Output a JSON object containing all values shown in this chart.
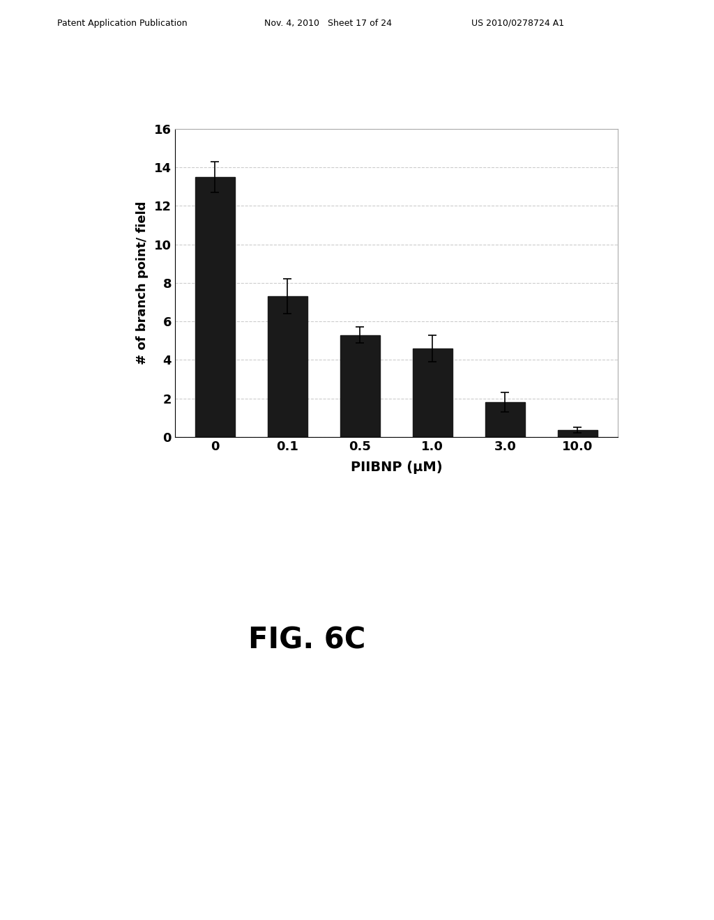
{
  "categories": [
    "0",
    "0.1",
    "0.5",
    "1.0",
    "3.0",
    "10.0"
  ],
  "values": [
    13.5,
    7.3,
    5.3,
    4.6,
    1.8,
    0.35
  ],
  "errors": [
    0.8,
    0.9,
    0.4,
    0.7,
    0.5,
    0.15
  ],
  "bar_color": "#1a1a1a",
  "background_color": "#ffffff",
  "plot_bg_color": "#ffffff",
  "ylabel": "# of branch point/ field",
  "xlabel": "PIIBNP (μM)",
  "ylim": [
    0,
    16
  ],
  "yticks": [
    0,
    2,
    4,
    6,
    8,
    10,
    12,
    14,
    16
  ],
  "title_fig": "FIG. 6C",
  "header_left": "Patent Application Publication",
  "header_mid": "Nov. 4, 2010   Sheet 17 of 24",
  "header_right": "US 2010/0278724 A1",
  "bar_width": 0.55,
  "grid_color": "#cccccc",
  "xlabel_fontsize": 14,
  "ylabel_fontsize": 13,
  "tick_fontsize": 13,
  "fig_label_fontsize": 30
}
